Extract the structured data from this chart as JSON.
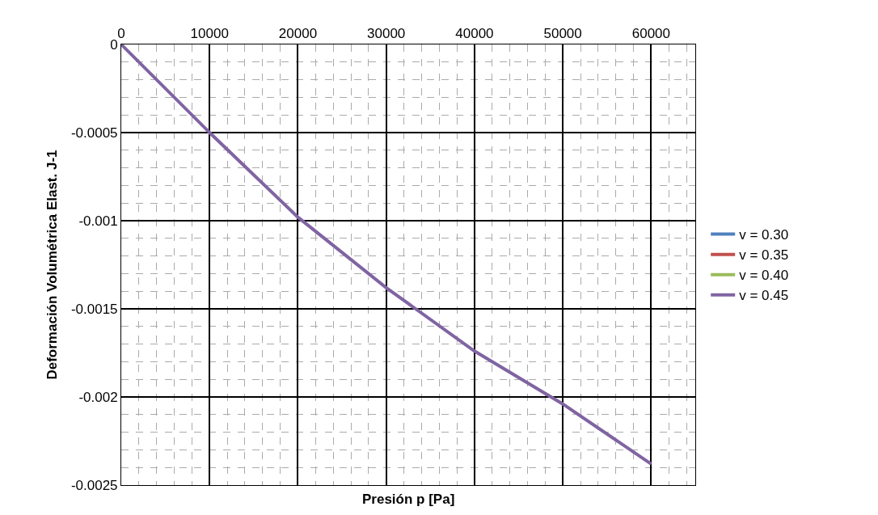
{
  "chart_data": {
    "type": "line",
    "xlabel": "Presión p [Pa]",
    "ylabel": "Deformación Volumétrica Elast. J-1",
    "x": [
      0,
      10000,
      20000,
      30000,
      40000,
      50000,
      60000
    ],
    "series": [
      {
        "name": "v = 0.30",
        "color": "#4f81bd",
        "values": [
          null,
          null,
          null,
          null,
          null,
          null,
          null
        ]
      },
      {
        "name": "v = 0.35",
        "color": "#c0504d",
        "values": [
          null,
          null,
          null,
          null,
          null,
          null,
          null
        ]
      },
      {
        "name": "v = 0.40",
        "color": "#9bbb59",
        "values": [
          null,
          null,
          null,
          null,
          null,
          null,
          null
        ]
      },
      {
        "name": "v = 0.45",
        "color": "#8064a2",
        "values": [
          0,
          -0.0005,
          -0.00098,
          -0.00138,
          -0.00174,
          -0.00204,
          -0.00238
        ]
      }
    ],
    "xlim": [
      0,
      65000
    ],
    "xticks": [
      0,
      10000,
      20000,
      30000,
      40000,
      50000,
      60000
    ],
    "ylim": [
      -0.0025,
      0
    ],
    "yticks": [
      -0.0025,
      -0.002,
      -0.0015,
      -0.001,
      -0.0005,
      0
    ],
    "grid": true,
    "legend": "right",
    "marker": "none",
    "line_style": "solid"
  }
}
